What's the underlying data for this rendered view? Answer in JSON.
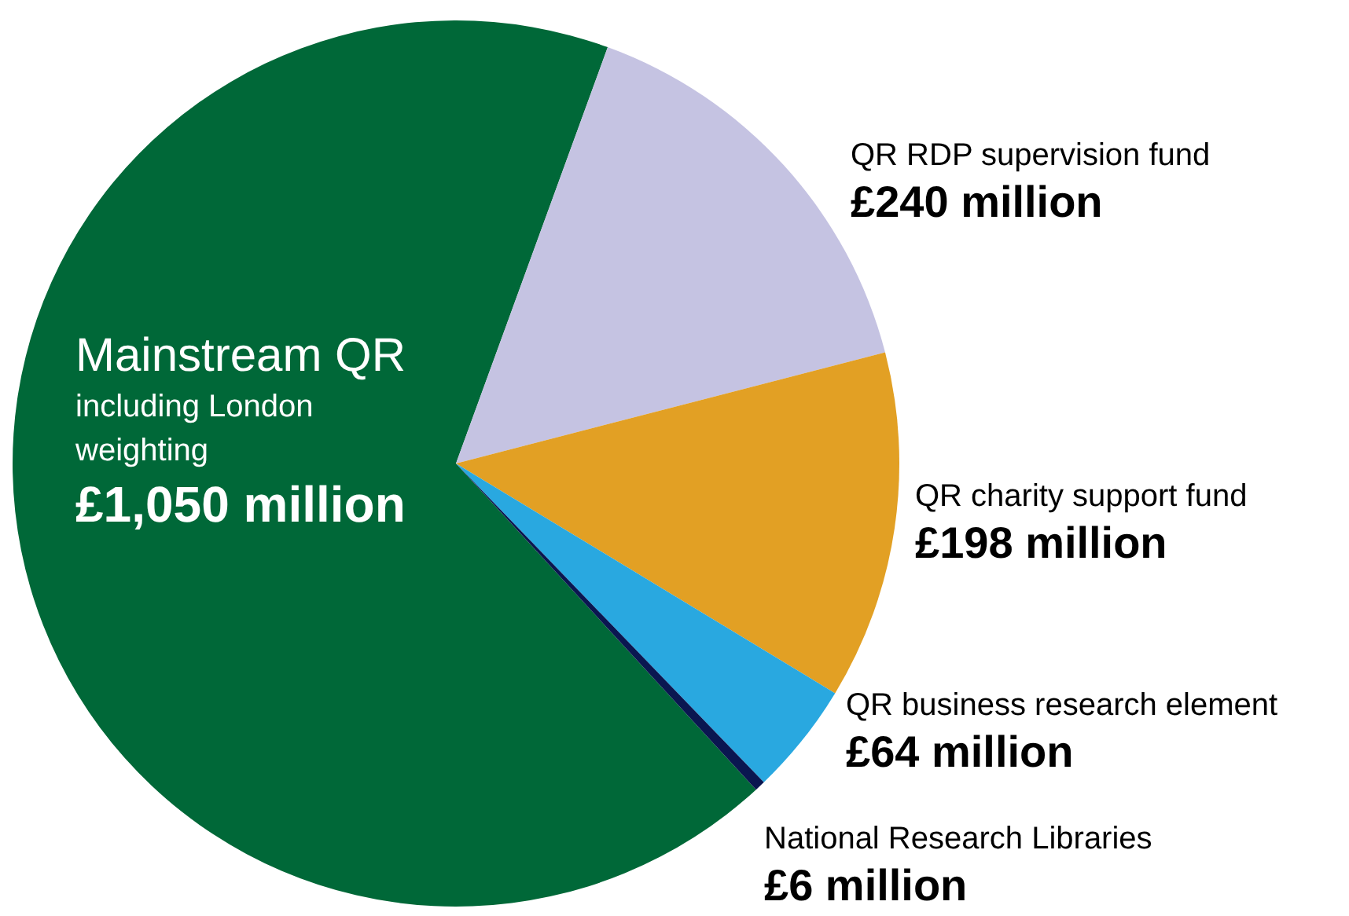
{
  "chart_data": {
    "type": "pie",
    "categories": [
      "Mainstream QR",
      "QR RDP supervision fund",
      "QR charity support fund",
      "QR business research element",
      "National Research Libraries"
    ],
    "values": [
      1050,
      240,
      198,
      64,
      6
    ],
    "colors": [
      "#006838",
      "#c5c3e2",
      "#e2a024",
      "#29a8e0",
      "#0a1650"
    ],
    "value_labels": [
      "£1,050 million",
      "£240 million",
      "£198 million",
      "£64 million",
      "£6 million"
    ],
    "annotations": [
      "including London weighting"
    ],
    "legend": false
  }
}
